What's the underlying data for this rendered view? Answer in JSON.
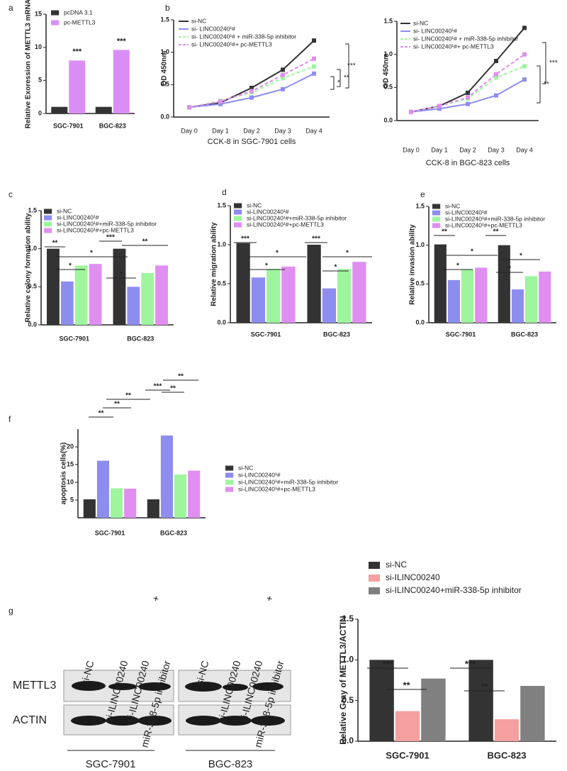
{
  "chart_data": [
    {
      "type": "bar",
      "panel": "a",
      "ylabel": "Relative Exoression of METTL3 mRNA",
      "categories": [
        "SGC-7901",
        "BGC-823"
      ],
      "series": [
        {
          "name": "pcDNA 3.1",
          "color": "#333333",
          "values": [
            1,
            1
          ]
        },
        {
          "name": "pc-METTL3",
          "color": "#d98ef5",
          "values": [
            8,
            9.6
          ]
        }
      ],
      "ylim": [
        0,
        15
      ],
      "yticks": [
        0,
        5,
        10,
        15
      ],
      "annotations": [
        "***",
        "***"
      ]
    },
    {
      "type": "line",
      "panel": "b",
      "ylabel": "OD 450nm",
      "xlabel": "CCK-8 in SGC-7901 cells",
      "categories": [
        "Day 0",
        "Day 1",
        "Day 2",
        "Day 3",
        "Day 4"
      ],
      "series": [
        {
          "name": "si-NC",
          "color": "#333333",
          "dash": false,
          "values": [
            0.15,
            0.22,
            0.45,
            0.73,
            1.18
          ]
        },
        {
          "name": "si- LINC00240¹#",
          "color": "#8d8df0",
          "dash": false,
          "values": [
            0.15,
            0.2,
            0.3,
            0.43,
            0.67
          ]
        },
        {
          "name": "si- LINC00240¹# + miR-338-5p inhibitor",
          "color": "#9ef59e",
          "dash": true,
          "values": [
            0.15,
            0.25,
            0.38,
            0.6,
            0.78
          ]
        },
        {
          "name": "si- LINC00240¹#+ pc-METTL3",
          "color": "#e08ef0",
          "dash": true,
          "values": [
            0.15,
            0.24,
            0.4,
            0.65,
            0.9
          ]
        }
      ],
      "ylim": [
        0,
        1.5
      ],
      "yticks": [
        {
          "value": 0,
          "label": "0.0"
        },
        {
          "value": 0.5,
          "label": "0.5"
        },
        {
          "value": 1,
          "label": "1.0"
        },
        {
          "value": 1.5,
          "label": "1.5"
        }
      ],
      "annotations": [
        "***",
        "**",
        "*"
      ]
    },
    {
      "type": "line",
      "panel": "",
      "ylabel": "OD 450nm",
      "xlabel": "CCK-8 in BGC-823 cells",
      "categories": [
        "Day 0",
        "Day 1",
        "Day 2",
        "Day 3",
        "Day 4"
      ],
      "series": [
        {
          "name": "si-NC",
          "color": "#333333",
          "dash": false,
          "values": [
            0.13,
            0.22,
            0.42,
            0.9,
            1.4
          ]
        },
        {
          "name": "si- LINC00240¹#",
          "color": "#8d8df0",
          "dash": false,
          "values": [
            0.13,
            0.18,
            0.25,
            0.38,
            0.62
          ]
        },
        {
          "name": "si- LINC00240¹# + miR-338-5p inhibitor",
          "color": "#9ef59e",
          "dash": true,
          "values": [
            0.13,
            0.22,
            0.33,
            0.65,
            0.82
          ]
        },
        {
          "name": "si- LINC00240¹#+ pc-METTL3",
          "color": "#e08ef0",
          "dash": true,
          "values": [
            0.13,
            0.22,
            0.35,
            0.7,
            1.0
          ]
        }
      ],
      "ylim": [
        0,
        1.5
      ],
      "yticks": [
        {
          "value": 0,
          "label": "0.0"
        },
        {
          "value": 0.5,
          "label": "0.5"
        },
        {
          "value": 1,
          "label": "1.0"
        },
        {
          "value": 1.5,
          "label": "1.5"
        }
      ],
      "annotations": [
        "***",
        "**"
      ]
    },
    {
      "type": "bar",
      "panel": "c",
      "ylabel": "Relative colony formation ability",
      "categories": [
        "SGC-7901",
        "BGC-823"
      ],
      "series": [
        {
          "name": "si-NC",
          "color": "#333333",
          "values": [
            1.0,
            1.0
          ]
        },
        {
          "name": "si-LINC00240¹#",
          "color": "#8d8df0",
          "values": [
            0.57,
            0.5
          ]
        },
        {
          "name": "si-LINC00240¹#+miR-338-5p inhibitor",
          "color": "#9ef59e",
          "values": [
            0.78,
            0.68
          ]
        },
        {
          "name": "si-LINC00240¹#+pc-METTL3",
          "color": "#e08ef0",
          "values": [
            0.8,
            0.78
          ]
        }
      ],
      "ylim": [
        0,
        1.5
      ],
      "yticks": [
        {
          "value": 0,
          "label": "0.0"
        },
        {
          "value": 0.5,
          "label": "0.5"
        },
        {
          "value": 1,
          "label": "1.0"
        },
        {
          "value": 1.5,
          "label": "1.5"
        }
      ],
      "annotations": [
        "**",
        "*",
        "*",
        "***",
        "**",
        "*"
      ]
    },
    {
      "type": "bar",
      "panel": "d",
      "ylabel": "Relative migration ability",
      "categories": [
        "SGC-7901",
        "BGC-823"
      ],
      "series": [
        {
          "name": "si-NC",
          "color": "#333333",
          "values": [
            1.02,
            1.0
          ]
        },
        {
          "name": "si-LINC00240¹#",
          "color": "#8d8df0",
          "values": [
            0.58,
            0.44
          ]
        },
        {
          "name": "si-LINC00240¹#+miR-338-5p inhibitor",
          "color": "#9ef59e",
          "values": [
            0.69,
            0.69
          ]
        },
        {
          "name": "si-LINC00240¹#+pc-METTL3",
          "color": "#e08ef0",
          "values": [
            0.72,
            0.78
          ]
        }
      ],
      "ylim": [
        0,
        1.5
      ],
      "yticks": [
        {
          "value": 0,
          "label": "0.0"
        },
        {
          "value": 0.5,
          "label": "0.5"
        },
        {
          "value": 1,
          "label": "1.0"
        },
        {
          "value": 1.5,
          "label": "1.5"
        }
      ],
      "annotations": [
        "***",
        "*",
        "*",
        "***",
        "*",
        "*"
      ]
    },
    {
      "type": "bar",
      "panel": "e",
      "ylabel": "Relative invasion ability",
      "categories": [
        "SGC-7901",
        "BGC-823"
      ],
      "series": [
        {
          "name": "si-NC",
          "color": "#333333",
          "values": [
            1.01,
            1.0
          ]
        },
        {
          "name": "si-LINC00240¹#",
          "color": "#8d8df0",
          "values": [
            0.55,
            0.43
          ]
        },
        {
          "name": "si-LINC00240¹#+miR-338-5p inhibitor",
          "color": "#9ef59e",
          "values": [
            0.69,
            0.6
          ]
        },
        {
          "name": "si-LINC00240¹#+pc-METTL3",
          "color": "#e08ef0",
          "values": [
            0.71,
            0.66
          ]
        }
      ],
      "ylim": [
        0,
        1.5
      ],
      "yticks": [
        {
          "value": 0,
          "label": "0.0"
        },
        {
          "value": 0.5,
          "label": "0.5"
        },
        {
          "value": 1,
          "label": "1.0"
        },
        {
          "value": 1.5,
          "label": "1.5"
        }
      ],
      "annotations": [
        "**",
        "*",
        "*",
        "**",
        "*",
        "*"
      ]
    },
    {
      "type": "bar",
      "panel": "f",
      "ylabel": "apoptosis  cells(%)",
      "categories": [
        "SGC-7901",
        "BGC-823"
      ],
      "series": [
        {
          "name": "si-NC",
          "color": "#333333",
          "values": [
            5.2,
            5.2
          ]
        },
        {
          "name": "si-LINC00240¹#",
          "color": "#8d8df0",
          "values": [
            16.1,
            23.2
          ]
        },
        {
          "name": "si-LINC00240¹#+miR-338-5p inhibitor",
          "color": "#9ef59e",
          "values": [
            8.3,
            12.2
          ]
        },
        {
          "name": "si-LINC00240¹#+pc-METTL3",
          "color": "#e08ef0",
          "values": [
            8.2,
            13.3
          ]
        }
      ],
      "ylim": [
        0,
        25
      ],
      "yticks": [
        5,
        10,
        15,
        20
      ],
      "annotations": [
        "**",
        "**",
        "**",
        "***",
        "**",
        "**"
      ]
    },
    {
      "type": "bar",
      "panel": "",
      "ylabel": "Relative Gray of METTL3/ACTIN",
      "categories": [
        "SGC-7901",
        "BGC-823"
      ],
      "series": [
        {
          "name": "si-NC",
          "color": "#333333",
          "values": [
            1.0,
            1.0
          ]
        },
        {
          "name": "si-ILINC00240",
          "color": "#f4a0a0",
          "values": [
            0.37,
            0.27
          ]
        },
        {
          "name": "si-ILINC00240+miR-338-5p inhibitor",
          "color": "#808080",
          "values": [
            0.77,
            0.68
          ]
        }
      ],
      "ylim": [
        0,
        1.5
      ],
      "yticks": [
        {
          "value": 0,
          "label": "0.0"
        },
        {
          "value": 0.5,
          "label": "0.5"
        },
        {
          "value": 1,
          "label": "1.0"
        },
        {
          "value": 1.5,
          "label": "1.5"
        }
      ],
      "annotations": [
        "***",
        "**",
        "***",
        "**"
      ]
    }
  ],
  "blot": {
    "panel": "g",
    "lanes": [
      [
        "si-NC"
      ],
      [
        "si-ILINC00240"
      ],
      [
        "si-ILINC00240",
        "+",
        "miR-338-5p inhibitor"
      ]
    ],
    "rows": [
      "METTL3",
      "ACTIN"
    ],
    "groups": [
      "SGC-7901",
      "BGC-823"
    ]
  }
}
